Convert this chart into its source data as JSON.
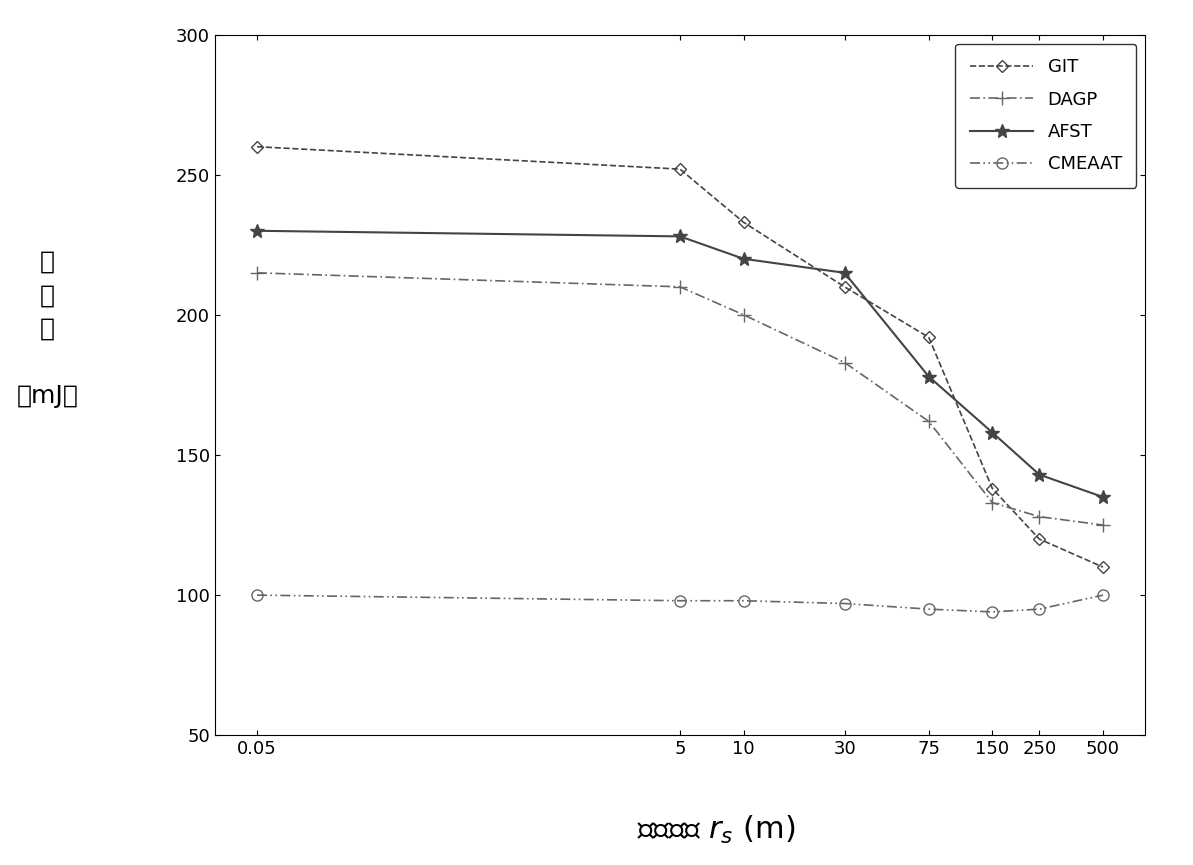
{
  "x_ticks": [
    0.05,
    5,
    10,
    30,
    75,
    150,
    250,
    500
  ],
  "GIT": {
    "x": [
      0.05,
      5,
      10,
      30,
      75,
      150,
      250,
      500
    ],
    "y": [
      260,
      252,
      233,
      210,
      192,
      138,
      120,
      110
    ],
    "label": "GIT"
  },
  "DAGP": {
    "x": [
      0.05,
      5,
      10,
      30,
      75,
      150,
      250,
      500
    ],
    "y": [
      215,
      210,
      200,
      183,
      162,
      133,
      128,
      125
    ],
    "label": "DAGP"
  },
  "AFST": {
    "x": [
      0.05,
      5,
      10,
      30,
      75,
      150,
      250,
      500
    ],
    "y": [
      230,
      228,
      220,
      215,
      178,
      158,
      143,
      135
    ],
    "label": "AFST"
  },
  "CMEAAT": {
    "x": [
      0.05,
      5,
      10,
      30,
      75,
      150,
      250,
      500
    ],
    "y": [
      100,
      98,
      98,
      97,
      95,
      94,
      95,
      100
    ],
    "label": "CMEAAT"
  },
  "ylim": [
    50,
    300
  ],
  "yticks": [
    50,
    100,
    150,
    200,
    250,
    300
  ],
  "background_color": "#ffffff"
}
